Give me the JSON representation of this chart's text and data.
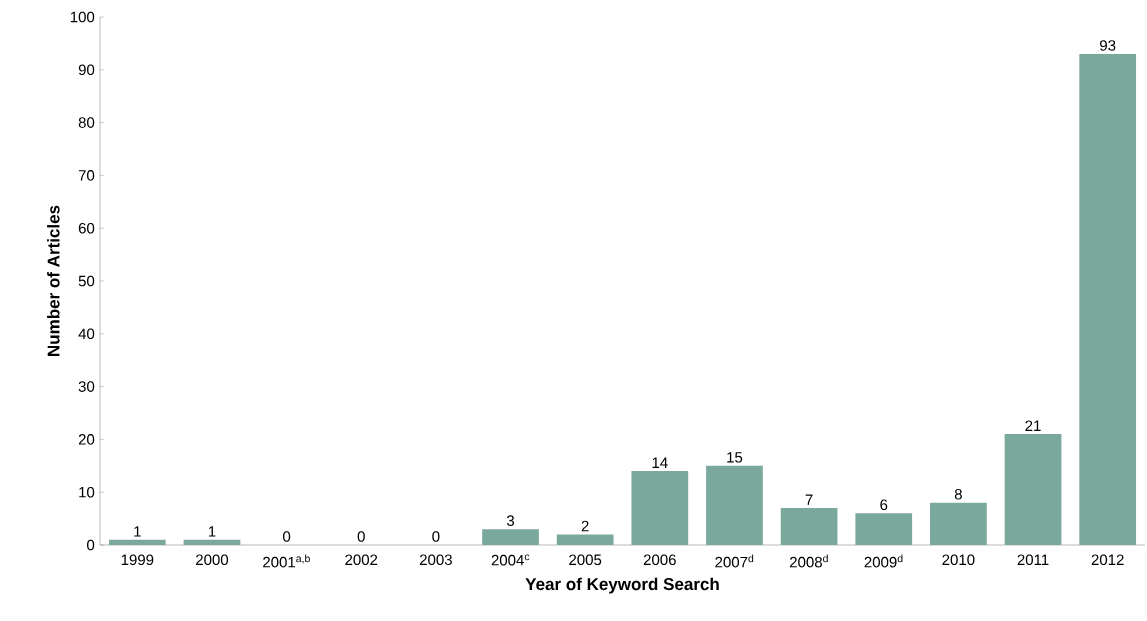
{
  "chart_data": {
    "type": "bar",
    "xlabel": "Year of Keyword Search",
    "ylabel": "Number of Articles",
    "categories": [
      "1999",
      "2000",
      "2001$^{a,b}$",
      "2002",
      "2003",
      "2004$^{c}$",
      "2005",
      "2006",
      "2007$^{d}$",
      "2008$^{d}$",
      "2009$^{d}$",
      "2010",
      "2011",
      "2012"
    ],
    "values": [
      1,
      1,
      0,
      0,
      0,
      3,
      2,
      14,
      15,
      7,
      6,
      8,
      21,
      93
    ],
    "color": "#7ba89d",
    "data_labels": true,
    "ylim": [
      0,
      100
    ],
    "yticks": [
      0,
      10,
      20,
      30,
      40,
      50,
      60,
      70,
      80,
      90,
      100
    ]
  }
}
